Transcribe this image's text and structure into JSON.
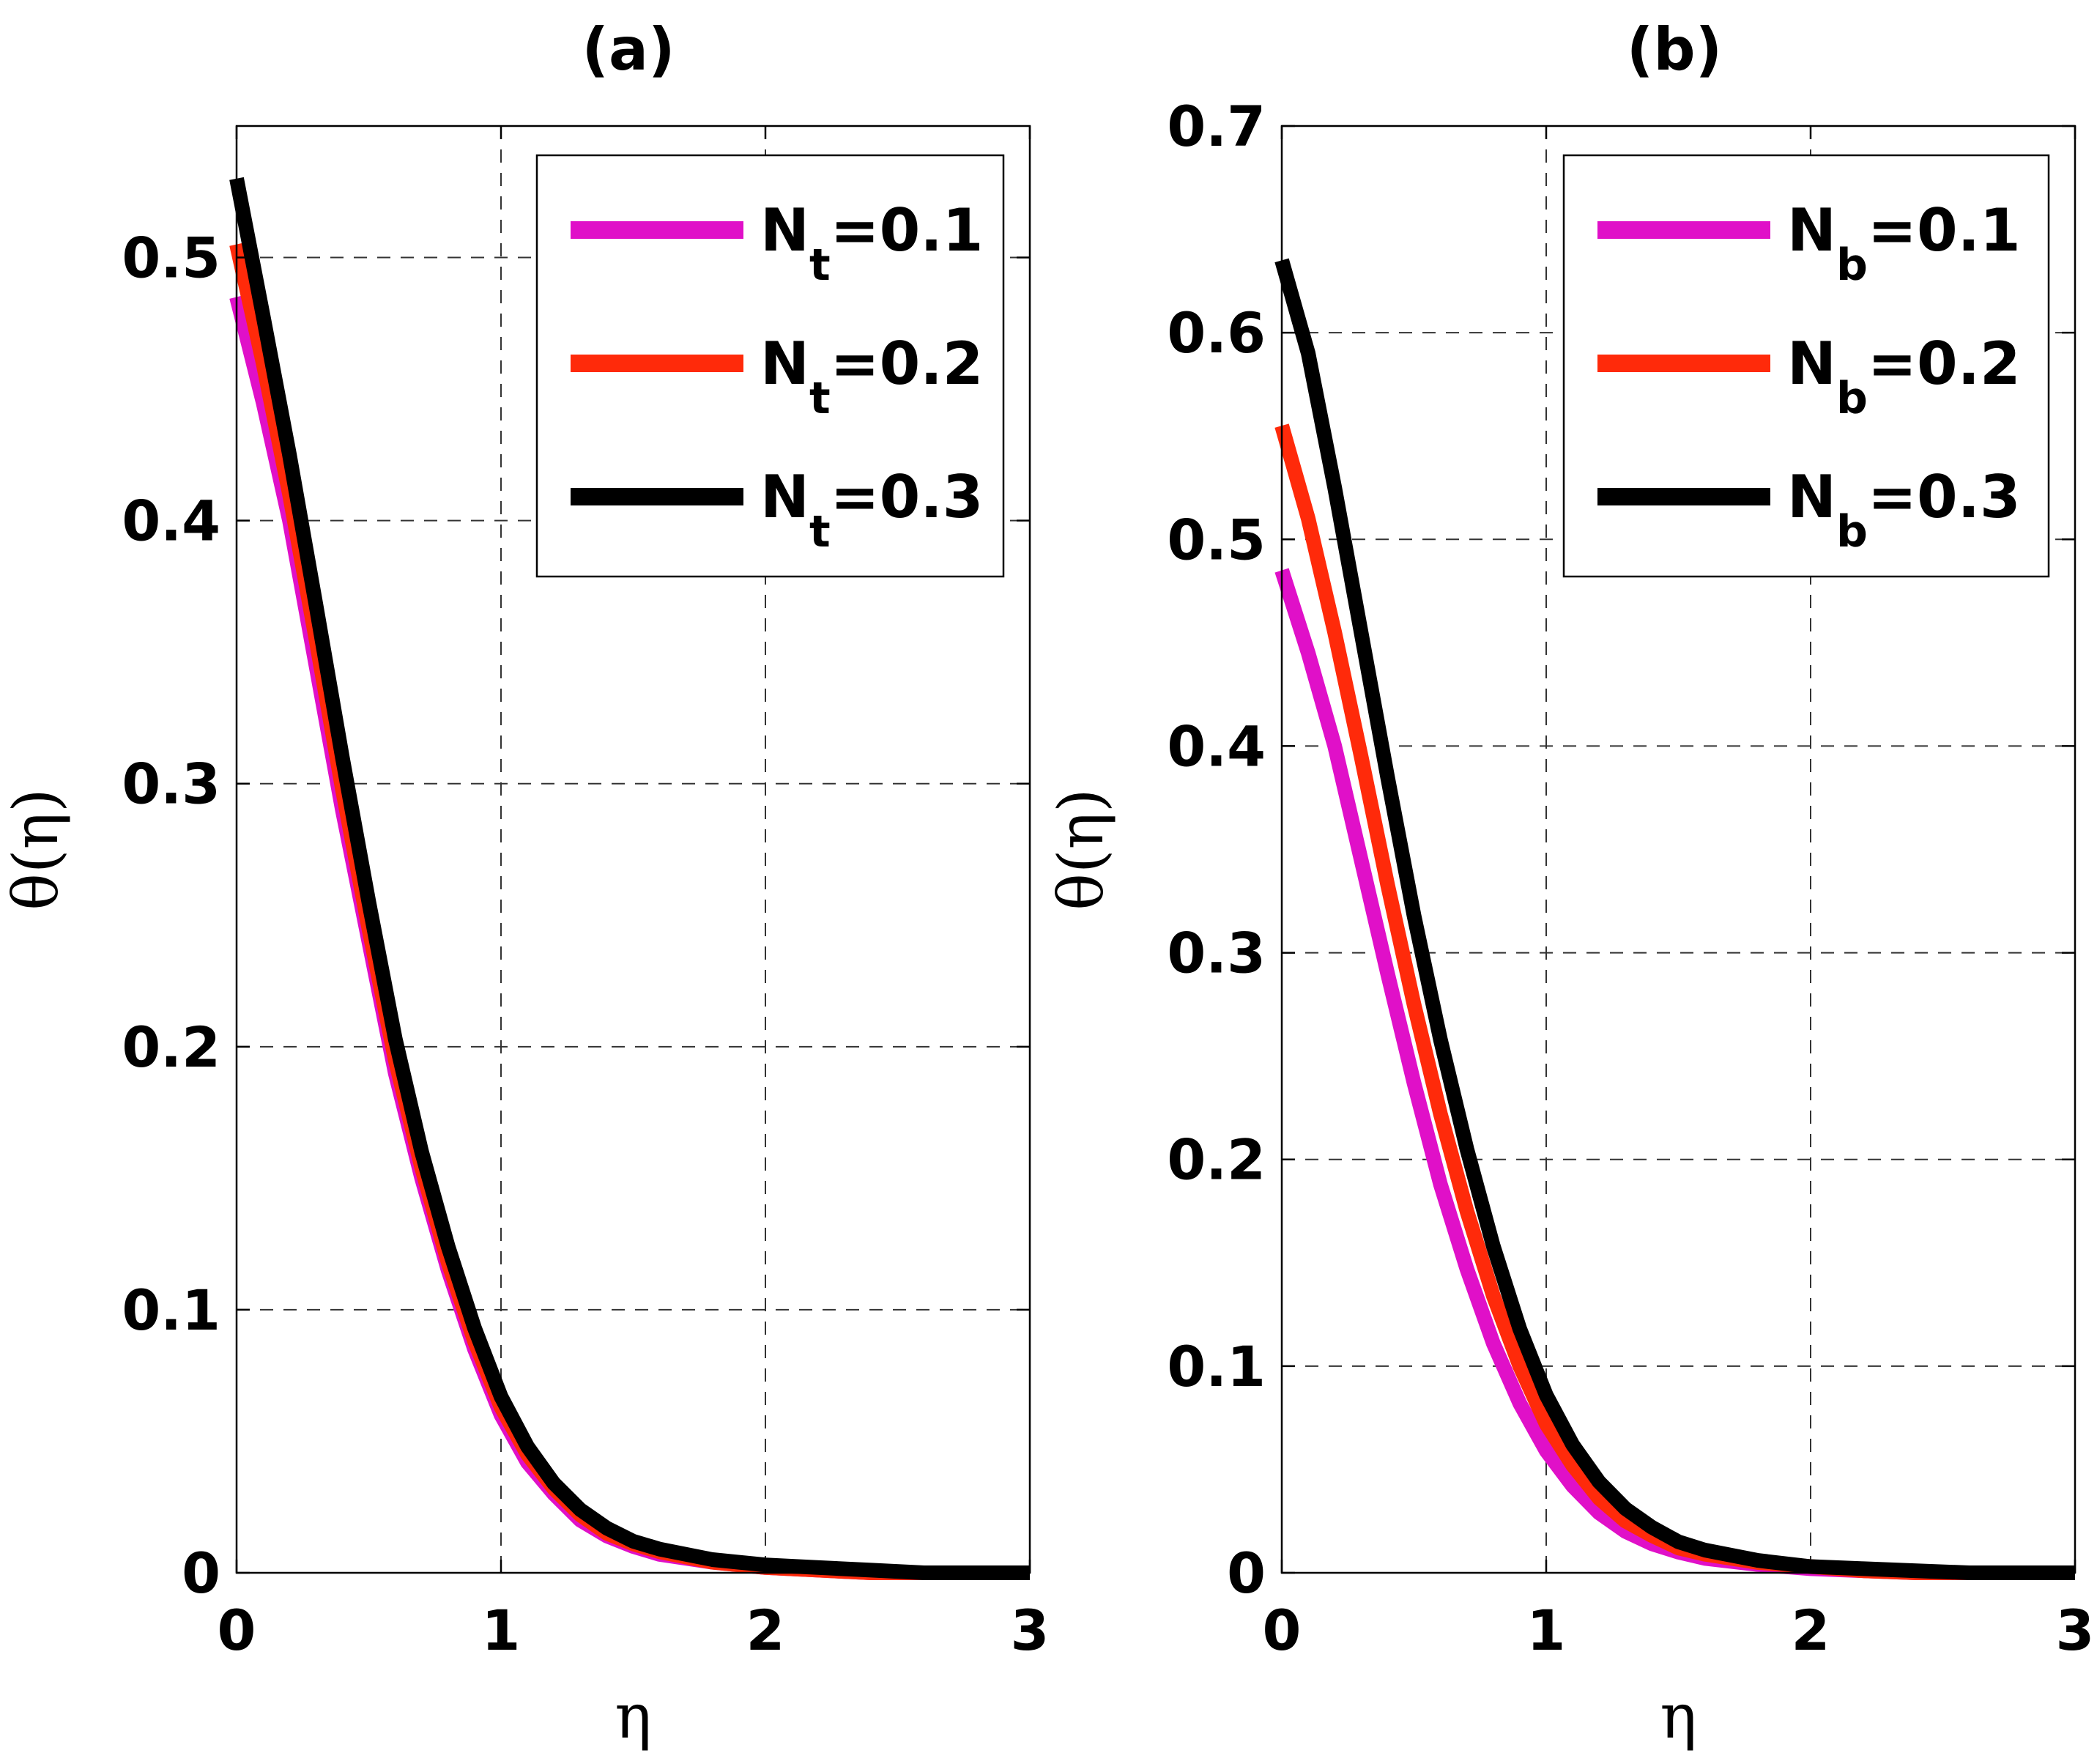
{
  "chart_data": [
    {
      "type": "line",
      "title": "(a)",
      "xlabel": "η",
      "ylabel": "θ(η)",
      "xlim": [
        0,
        3
      ],
      "ylim": [
        0,
        0.55
      ],
      "xticks": [
        "0",
        "1",
        "2",
        "3"
      ],
      "xtick_values": [
        0,
        1,
        2,
        3
      ],
      "yticks": [
        "0",
        "0.1",
        "0.2",
        "0.3",
        "0.4",
        "0.5"
      ],
      "ytick_values": [
        0,
        0.1,
        0.2,
        0.3,
        0.4,
        0.5
      ],
      "grid": true,
      "legend_position": "top-right",
      "x": [
        0,
        0.1,
        0.2,
        0.3,
        0.4,
        0.5,
        0.6,
        0.7,
        0.8,
        0.9,
        1.0,
        1.1,
        1.2,
        1.3,
        1.4,
        1.5,
        1.6,
        1.8,
        2.0,
        2.2,
        2.4,
        2.6,
        3.0
      ],
      "series": [
        {
          "name": "N",
          "sub": "t",
          "value_label": "=0.1",
          "color": "#e010c8",
          "values": [
            0.485,
            0.445,
            0.4,
            0.345,
            0.29,
            0.24,
            0.19,
            0.15,
            0.115,
            0.085,
            0.06,
            0.042,
            0.03,
            0.02,
            0.014,
            0.01,
            0.007,
            0.004,
            0.002,
            0.001,
            0.0,
            0.0,
            0.0
          ]
        },
        {
          "name": "N",
          "sub": "t",
          "value_label": "=0.2",
          "color": "#ff2a0a",
          "values": [
            0.505,
            0.46,
            0.41,
            0.355,
            0.298,
            0.245,
            0.195,
            0.154,
            0.118,
            0.088,
            0.063,
            0.045,
            0.032,
            0.022,
            0.015,
            0.011,
            0.008,
            0.004,
            0.002,
            0.001,
            0.0,
            0.0,
            0.0
          ]
        },
        {
          "name": "N",
          "sub": "t",
          "value_label": "=0.3",
          "color": "#000000",
          "values": [
            0.53,
            0.478,
            0.425,
            0.368,
            0.31,
            0.255,
            0.203,
            0.16,
            0.124,
            0.093,
            0.067,
            0.048,
            0.034,
            0.024,
            0.017,
            0.012,
            0.009,
            0.005,
            0.003,
            0.002,
            0.001,
            0.0,
            0.0
          ]
        }
      ]
    },
    {
      "type": "line",
      "title": "(b)",
      "xlabel": "η",
      "ylabel": "θ(η)",
      "xlim": [
        0,
        3
      ],
      "ylim": [
        0,
        0.7
      ],
      "xticks": [
        "0",
        "1",
        "2",
        "3"
      ],
      "xtick_values": [
        0,
        1,
        2,
        3
      ],
      "yticks": [
        "0",
        "0.1",
        "0.2",
        "0.3",
        "0.4",
        "0.5",
        "0.6",
        "0.7"
      ],
      "ytick_values": [
        0,
        0.1,
        0.2,
        0.3,
        0.4,
        0.5,
        0.6,
        0.7
      ],
      "grid": true,
      "legend_position": "top-right",
      "x": [
        0,
        0.1,
        0.2,
        0.3,
        0.4,
        0.5,
        0.6,
        0.7,
        0.8,
        0.9,
        1.0,
        1.1,
        1.2,
        1.3,
        1.4,
        1.5,
        1.6,
        1.8,
        2.0,
        2.2,
        2.4,
        2.6,
        3.0
      ],
      "series": [
        {
          "name": "N",
          "sub": "b",
          "value_label": "=0.1",
          "color": "#e010c8",
          "values": [
            0.485,
            0.445,
            0.4,
            0.345,
            0.29,
            0.237,
            0.188,
            0.147,
            0.111,
            0.082,
            0.059,
            0.042,
            0.029,
            0.02,
            0.014,
            0.01,
            0.007,
            0.004,
            0.002,
            0.001,
            0.0,
            0.0,
            0.0
          ]
        },
        {
          "name": "N",
          "sub": "b",
          "value_label": "=0.2",
          "color": "#ff2a0a",
          "values": [
            0.555,
            0.51,
            0.455,
            0.395,
            0.333,
            0.275,
            0.222,
            0.175,
            0.134,
            0.1,
            0.072,
            0.052,
            0.036,
            0.025,
            0.018,
            0.012,
            0.009,
            0.005,
            0.003,
            0.001,
            0.0,
            0.0,
            0.0
          ]
        },
        {
          "name": "N",
          "sub": "b",
          "value_label": "=0.3",
          "color": "#000000",
          "values": [
            0.635,
            0.59,
            0.525,
            0.455,
            0.385,
            0.318,
            0.258,
            0.205,
            0.158,
            0.118,
            0.086,
            0.062,
            0.044,
            0.031,
            0.022,
            0.015,
            0.011,
            0.006,
            0.003,
            0.002,
            0.001,
            0.0,
            0.0
          ]
        }
      ]
    }
  ]
}
